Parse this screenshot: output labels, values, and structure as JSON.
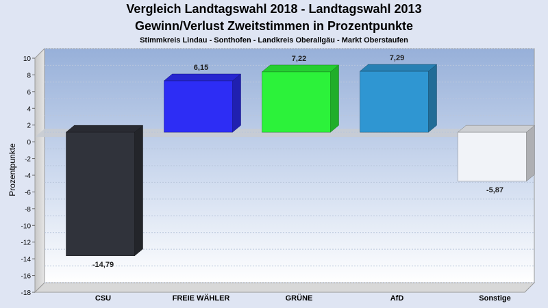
{
  "chart_data": {
    "type": "bar",
    "title": "Vergleich Landtagswahl 2018 - Landtagswahl 2013",
    "subtitle": "Gewinn/Verlust Zweitstimmen in Prozentpunkte",
    "subsubtitle": "Stimmkreis Lindau - Sonthofen - Landkreis Oberallgäu - Markt Oberstaufen",
    "xlabel": "",
    "ylabel": "Prozentpunkte",
    "ylim": [
      -18,
      10
    ],
    "yticks": [
      10,
      8,
      6,
      4,
      2,
      0,
      -2,
      -4,
      -6,
      -8,
      -10,
      -12,
      -14,
      -16,
      -18
    ],
    "grid": true,
    "categories": [
      "CSU",
      "FREIE WÄHLER",
      "GRÜNE",
      "AfD",
      "Sonstige"
    ],
    "values": [
      -14.79,
      6.15,
      7.22,
      7.29,
      -5.87
    ],
    "labels": [
      "-14,79",
      "6,15",
      "7,22",
      "7,29",
      "-5,87"
    ],
    "colors": [
      "#30333b",
      "#2d2df5",
      "#2cf23a",
      "#2f96d2",
      "#f1f3f8"
    ]
  }
}
